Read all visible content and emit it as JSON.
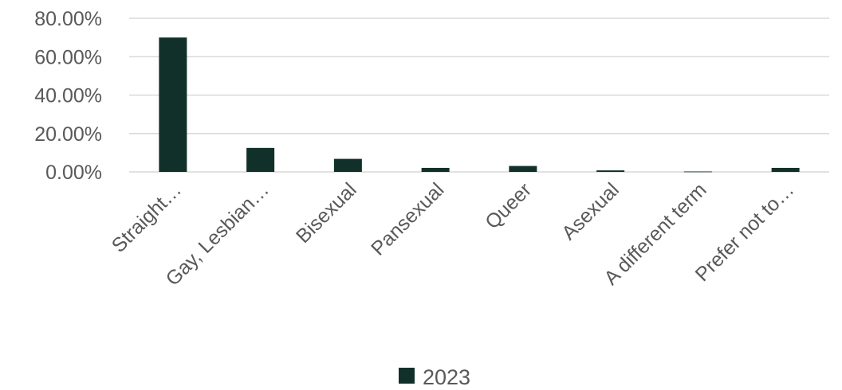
{
  "chart_data": {
    "type": "bar",
    "categories": [
      "Straight…",
      "Gay, Lesbian…",
      "Bisexual",
      "Pansexual",
      "Queer",
      "Asexual",
      "A different term",
      "Prefer not to…"
    ],
    "series": [
      {
        "name": "2023",
        "values": [
          70.0,
          12.5,
          6.8,
          2.1,
          3.1,
          0.8,
          0.2,
          2.1
        ],
        "color": "#12302a"
      }
    ],
    "ylim": [
      0,
      80
    ],
    "yticks": [
      0,
      20,
      40,
      60,
      80
    ],
    "ytick_labels": [
      "0.00%",
      "20.00%",
      "40.00%",
      "60.00%",
      "80.00%"
    ],
    "grid": true,
    "legend": "bottom",
    "title": "",
    "xlabel": "",
    "ylabel": ""
  }
}
